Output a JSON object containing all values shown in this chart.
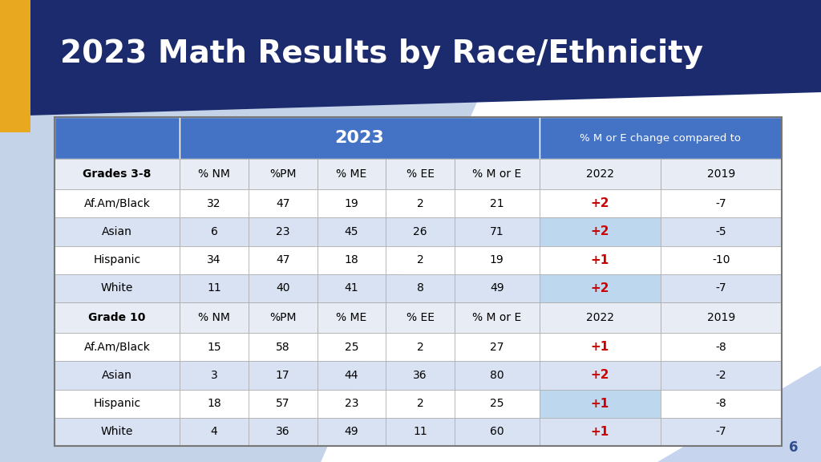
{
  "title": "2023 Math Results by Race/Ethnicity",
  "title_color": "#FFFFFF",
  "title_bg_color": "#1C2B6E",
  "header_bg_color": "#4472C4",
  "highlight_bg": "#BDD7EE",
  "row_bg_light": "#D9E2F3",
  "row_bg_white": "#FFFFFF",
  "subheader_bg": "#E8EDF5",
  "change_color": "#CC0000",
  "page_bg": "#CBD4E8",
  "gold_color": "#E8A820",
  "page_num": "6",
  "col_header_2023": "2023",
  "col_header_change": "% M or E change compared to",
  "grades38_header": [
    "Grades 3-8",
    "% NM",
    "%PM",
    "% ME",
    "% EE",
    "% M or E",
    "2022",
    "2019"
  ],
  "grade10_header": [
    "Grade 10",
    "% NM",
    "%PM",
    "% ME",
    "% EE",
    "% M or E",
    "2022",
    "2019"
  ],
  "grades38_data": [
    {
      "row": "Af.Am/Black",
      "nm": "32",
      "pm": "47",
      "me": "19",
      "ee": "2",
      "more": "21",
      "y2022": "+2",
      "y2019": "-7",
      "highlight": false
    },
    {
      "row": "Asian",
      "nm": "6",
      "pm": "23",
      "me": "45",
      "ee": "26",
      "more": "71",
      "y2022": "+2",
      "y2019": "-5",
      "highlight": true
    },
    {
      "row": "Hispanic",
      "nm": "34",
      "pm": "47",
      "me": "18",
      "ee": "2",
      "more": "19",
      "y2022": "+1",
      "y2019": "-10",
      "highlight": false
    },
    {
      "row": "White",
      "nm": "11",
      "pm": "40",
      "me": "41",
      "ee": "8",
      "more": "49",
      "y2022": "+2",
      "y2019": "-7",
      "highlight": true
    }
  ],
  "grade10_data": [
    {
      "row": "Af.Am/Black",
      "nm": "15",
      "pm": "58",
      "me": "25",
      "ee": "2",
      "more": "27",
      "y2022": "+1",
      "y2019": "-8",
      "highlight": false
    },
    {
      "row": "Asian",
      "nm": "3",
      "pm": "17",
      "me": "44",
      "ee": "36",
      "more": "80",
      "y2022": "+2",
      "y2019": "-2",
      "highlight": false
    },
    {
      "row": "Hispanic",
      "nm": "18",
      "pm": "57",
      "me": "23",
      "ee": "2",
      "more": "25",
      "y2022": "+1",
      "y2019": "-8",
      "highlight": true
    },
    {
      "row": "White",
      "nm": "4",
      "pm": "36",
      "me": "49",
      "ee": "11",
      "more": "60",
      "y2022": "+1",
      "y2019": "-7",
      "highlight": false
    }
  ]
}
